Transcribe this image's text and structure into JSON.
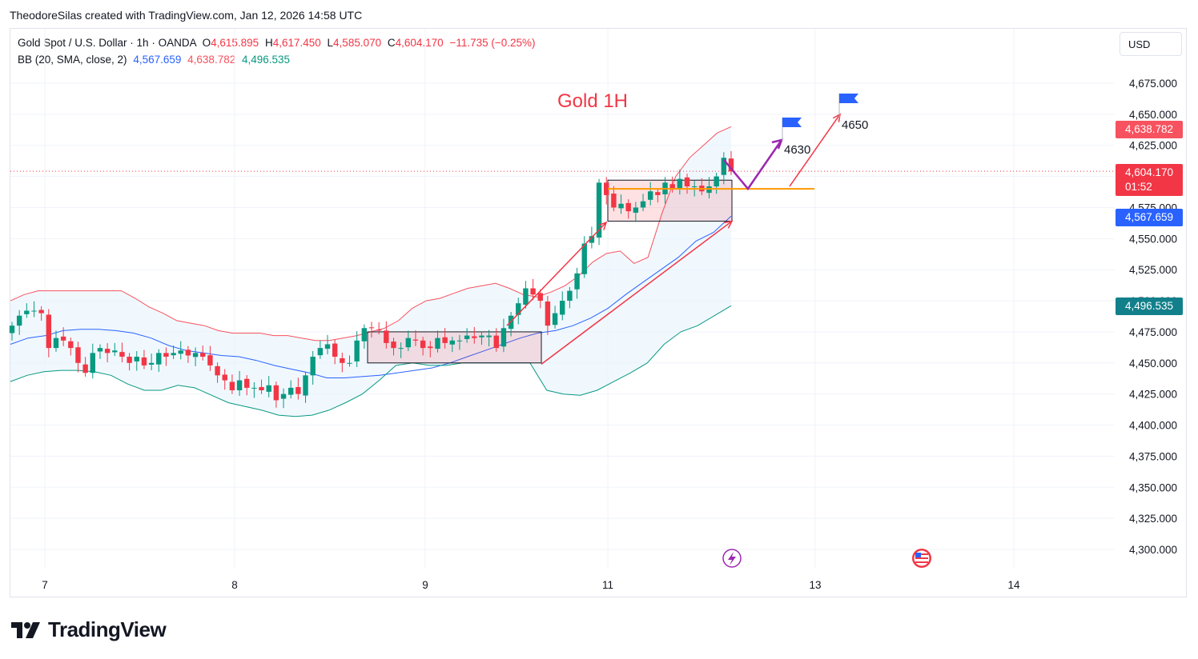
{
  "credit": "TheodoreSilas created with TradingView.com, Jan 12, 2026 14:58 UTC",
  "legend": {
    "symbol": "Gold Spot / U.S. Dollar · 1h · OANDA",
    "o_label": "O",
    "o_value": "4,615.895",
    "h_label": "H",
    "h_value": "4,617.450",
    "l_label": "L",
    "l_value": "4,585.070",
    "c_label": "C",
    "c_value": "4,604.170",
    "change": "−11.735 (−0.25%)",
    "bb_label": "BB (20, SMA, close, 2)",
    "bb_basis": "4,567.659",
    "bb_upper": "4,638.782",
    "bb_lower": "4,496.535"
  },
  "currency_button": "USD",
  "brand": "TradingView",
  "price_tags": {
    "upper": "4,638.782",
    "last": "4,604.170",
    "countdown": "01:52",
    "basis": "4,567.659",
    "lower": "4,496.535"
  },
  "colors": {
    "up": "#089981",
    "down": "#f23645",
    "upper_band": "#f7525f",
    "basis": "#2962ff",
    "lower_band": "#089981",
    "band_fill": "#e3f2fd",
    "arrow": "#f23645",
    "path": "#9c27b0",
    "level": "#ff9800",
    "flag": "#2962ff"
  },
  "icons": {
    "flash": "lightning-icon",
    "event": "us-flag-icon",
    "logo": "tradingview-logo-icon",
    "target_flag": "flag-icon"
  },
  "chart_data": {
    "type": "candlestick",
    "title": "Gold 1H",
    "ylim": [
      4290,
      4695
    ],
    "y_ticks": [
      "4,300.000",
      "4,325.000",
      "4,350.000",
      "4,375.000",
      "4,400.000",
      "4,425.000",
      "4,450.000",
      "4,475.000",
      "4,500.000",
      "4,525.000",
      "4,550.000",
      "4,575.000",
      "4,600.000",
      "4,625.000",
      "4,650.000",
      "4,675.000"
    ],
    "x_ticks": [
      "7",
      "8",
      "9",
      "11",
      "13",
      "14"
    ],
    "annotations": [
      {
        "text": "4630",
        "price": 4630
      },
      {
        "text": "4650",
        "price": 4650
      }
    ],
    "support_level": 4590,
    "closes": [
      4480,
      4488,
      4492,
      4492,
      4490,
      4462,
      4470,
      4468,
      4462,
      4450,
      4442,
      4458,
      4462,
      4458,
      4460,
      4455,
      4450,
      4455,
      4448,
      4450,
      4458,
      4455,
      4458,
      4460,
      4456,
      4458,
      4455,
      4448,
      4440,
      4436,
      4428,
      4436,
      4430,
      4430,
      4428,
      4432,
      4420,
      4425,
      4430,
      4425,
      4440,
      4455,
      4462,
      4465,
      4455,
      4450,
      4450,
      4468,
      4478,
      4478,
      4476,
      4466,
      4462,
      4462,
      4470,
      4468,
      4462,
      4462,
      4470,
      4466,
      4468,
      4468,
      4472,
      4470,
      4472,
      4472,
      4462,
      4478,
      4488,
      4498,
      4510,
      4505,
      4500,
      4480,
      4490,
      4500,
      4508,
      4522,
      4546,
      4552,
      4595,
      4585,
      4575,
      4578,
      4572,
      4575,
      4580,
      4588,
      4585,
      4595,
      4590,
      4598,
      4592,
      4592,
      4588,
      4592,
      4600,
      4615,
      4604
    ],
    "bb_upper": [
      4500,
      4505,
      4508,
      4508,
      4508,
      4508,
      4508,
      4508,
      4508,
      4502,
      4495,
      4490,
      4484,
      4482,
      4480,
      4476,
      4474,
      4474,
      4474,
      4472,
      4472,
      4470,
      4468,
      4468,
      4470,
      4472,
      4475,
      4478,
      4484,
      4494,
      4500,
      4502,
      4506,
      4510,
      4512,
      4514,
      4510,
      4505,
      4503,
      4507,
      4512,
      4520,
      4531,
      4538,
      4540,
      4530,
      4535,
      4570,
      4600,
      4615,
      4625,
      4635,
      4640
    ],
    "bb_basis": [
      4465,
      4470,
      4472,
      4476,
      4477,
      4477,
      4476,
      4474,
      4470,
      4464,
      4460,
      4458,
      4456,
      4455,
      4452,
      4448,
      4445,
      4442,
      4438,
      4438,
      4439,
      4440,
      4442,
      4444,
      4446,
      4450,
      4455,
      4460,
      4465,
      4470,
      4474,
      4476,
      4480,
      4486,
      4494,
      4505,
      4515,
      4525,
      4535,
      4548,
      4555,
      4568
    ],
    "bb_lower": [
      4435,
      4440,
      4443,
      4444,
      4444,
      4443,
      4440,
      4433,
      4428,
      4428,
      4432,
      4430,
      4424,
      4418,
      4415,
      4412,
      4408,
      4407,
      4408,
      4412,
      4418,
      4425,
      4436,
      4448,
      4450,
      4448,
      4448,
      4450,
      4450,
      4450,
      4450,
      4450,
      4428,
      4425,
      4424,
      4428,
      4435,
      4442,
      4450,
      4465,
      4475,
      4480,
      4488,
      4496
    ]
  }
}
